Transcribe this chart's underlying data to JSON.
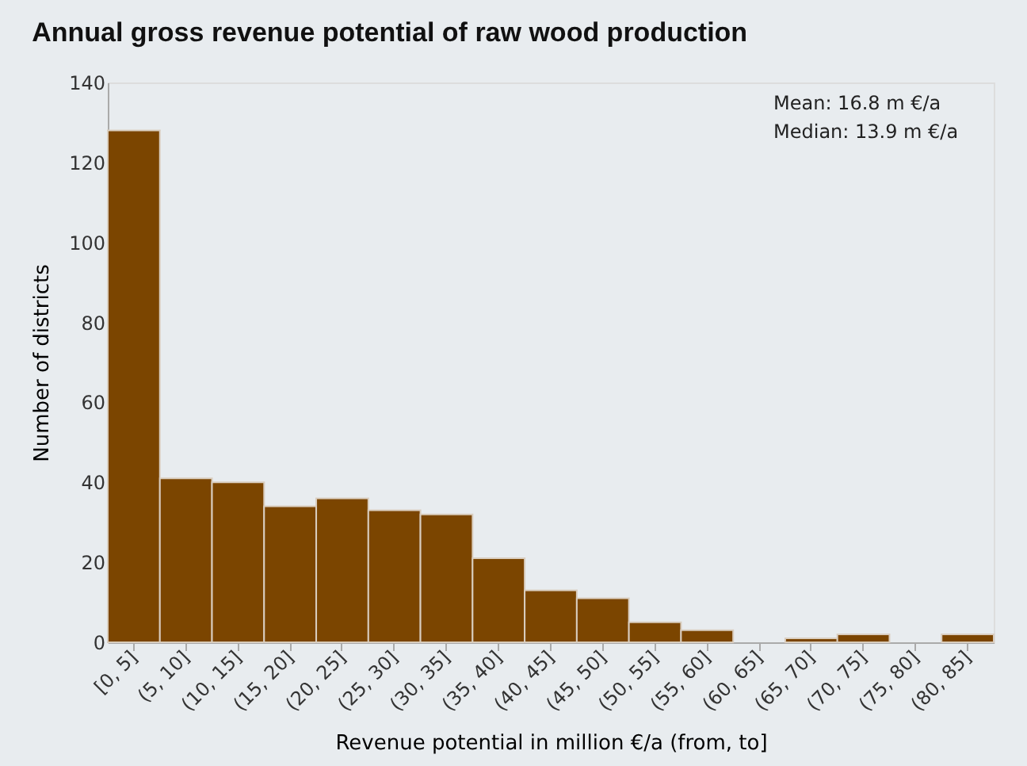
{
  "chart_data": {
    "type": "bar",
    "title": "Annual gross revenue potential of raw wood production",
    "xlabel": "Revenue potential in million €/a (from, to]",
    "ylabel": "Number of districts",
    "categories": [
      "[0, 5]",
      "(5, 10]",
      "(10, 15]",
      "(15, 20]",
      "(20, 25]",
      "(25, 30]",
      "(30, 35]",
      "(35, 40]",
      "(40, 45]",
      "(45, 50]",
      "(50, 55]",
      "(55, 60]",
      "(60, 65]",
      "(65, 70]",
      "(70, 75]",
      "(75, 80]",
      "(80, 85]"
    ],
    "values": [
      128,
      41,
      40,
      34,
      36,
      33,
      32,
      21,
      13,
      11,
      5,
      3,
      0,
      1,
      2,
      0,
      2
    ],
    "color": "#7b4500",
    "ylim": [
      0,
      140
    ],
    "yticks": [
      0,
      20,
      40,
      60,
      80,
      100,
      120,
      140
    ],
    "annotations": [
      "Mean: 16.8 m €/a",
      "Median: 13.9 m €/a"
    ],
    "grid": false
  }
}
